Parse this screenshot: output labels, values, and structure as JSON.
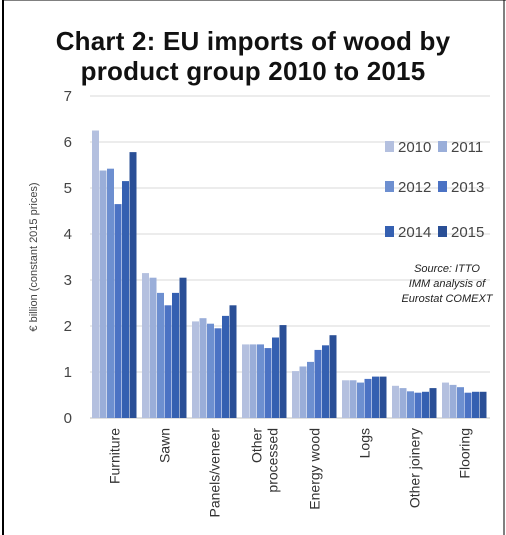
{
  "chart_data": {
    "type": "bar",
    "title": "Chart 2: EU imports of wood by product group 2010 to 2015",
    "title_lines": [
      "Chart 2: EU imports of wood by",
      "product group 2010 to 2015"
    ],
    "ylabel": "€ billion (constant 2015 prices)",
    "xlabel": "",
    "ylim": [
      0,
      7
    ],
    "yticks": [
      "0",
      "1",
      "2",
      "3",
      "4",
      "5",
      "6",
      "7"
    ],
    "grid": true,
    "legend_position": "right",
    "categories": [
      "Furniture",
      "Sawn",
      "Panels/veneer",
      "Other processed",
      "Energy wood",
      "Logs",
      "Other joinery",
      "Flooring"
    ],
    "series": [
      {
        "name": "2010",
        "color": "#b4c0df",
        "values": [
          6.25,
          3.15,
          2.1,
          1.6,
          1.02,
          0.82,
          0.7,
          0.77
        ]
      },
      {
        "name": "2011",
        "color": "#9aaed9",
        "values": [
          5.38,
          3.05,
          2.17,
          1.6,
          1.12,
          0.82,
          0.65,
          0.72
        ]
      },
      {
        "name": "2012",
        "color": "#6d8fd0",
        "values": [
          5.42,
          2.72,
          2.05,
          1.6,
          1.22,
          0.77,
          0.58,
          0.67
        ]
      },
      {
        "name": "2013",
        "color": "#4b72c4",
        "values": [
          4.65,
          2.45,
          1.95,
          1.52,
          1.48,
          0.85,
          0.55,
          0.55
        ]
      },
      {
        "name": "2014",
        "color": "#3560b1",
        "values": [
          5.15,
          2.72,
          2.22,
          1.75,
          1.58,
          0.9,
          0.57,
          0.57
        ]
      },
      {
        "name": "2015",
        "color": "#2a4f96",
        "values": [
          5.78,
          3.05,
          2.45,
          2.02,
          1.8,
          0.9,
          0.65,
          0.57
        ]
      }
    ],
    "annotation": {
      "lines": [
        "Source: ITTO",
        "IMM analysis of",
        "Eurostat COMEXT"
      ]
    }
  },
  "colors": {
    "grid": "#d9d9d9",
    "axis": "#bfbfbf",
    "frame": "#000000"
  }
}
